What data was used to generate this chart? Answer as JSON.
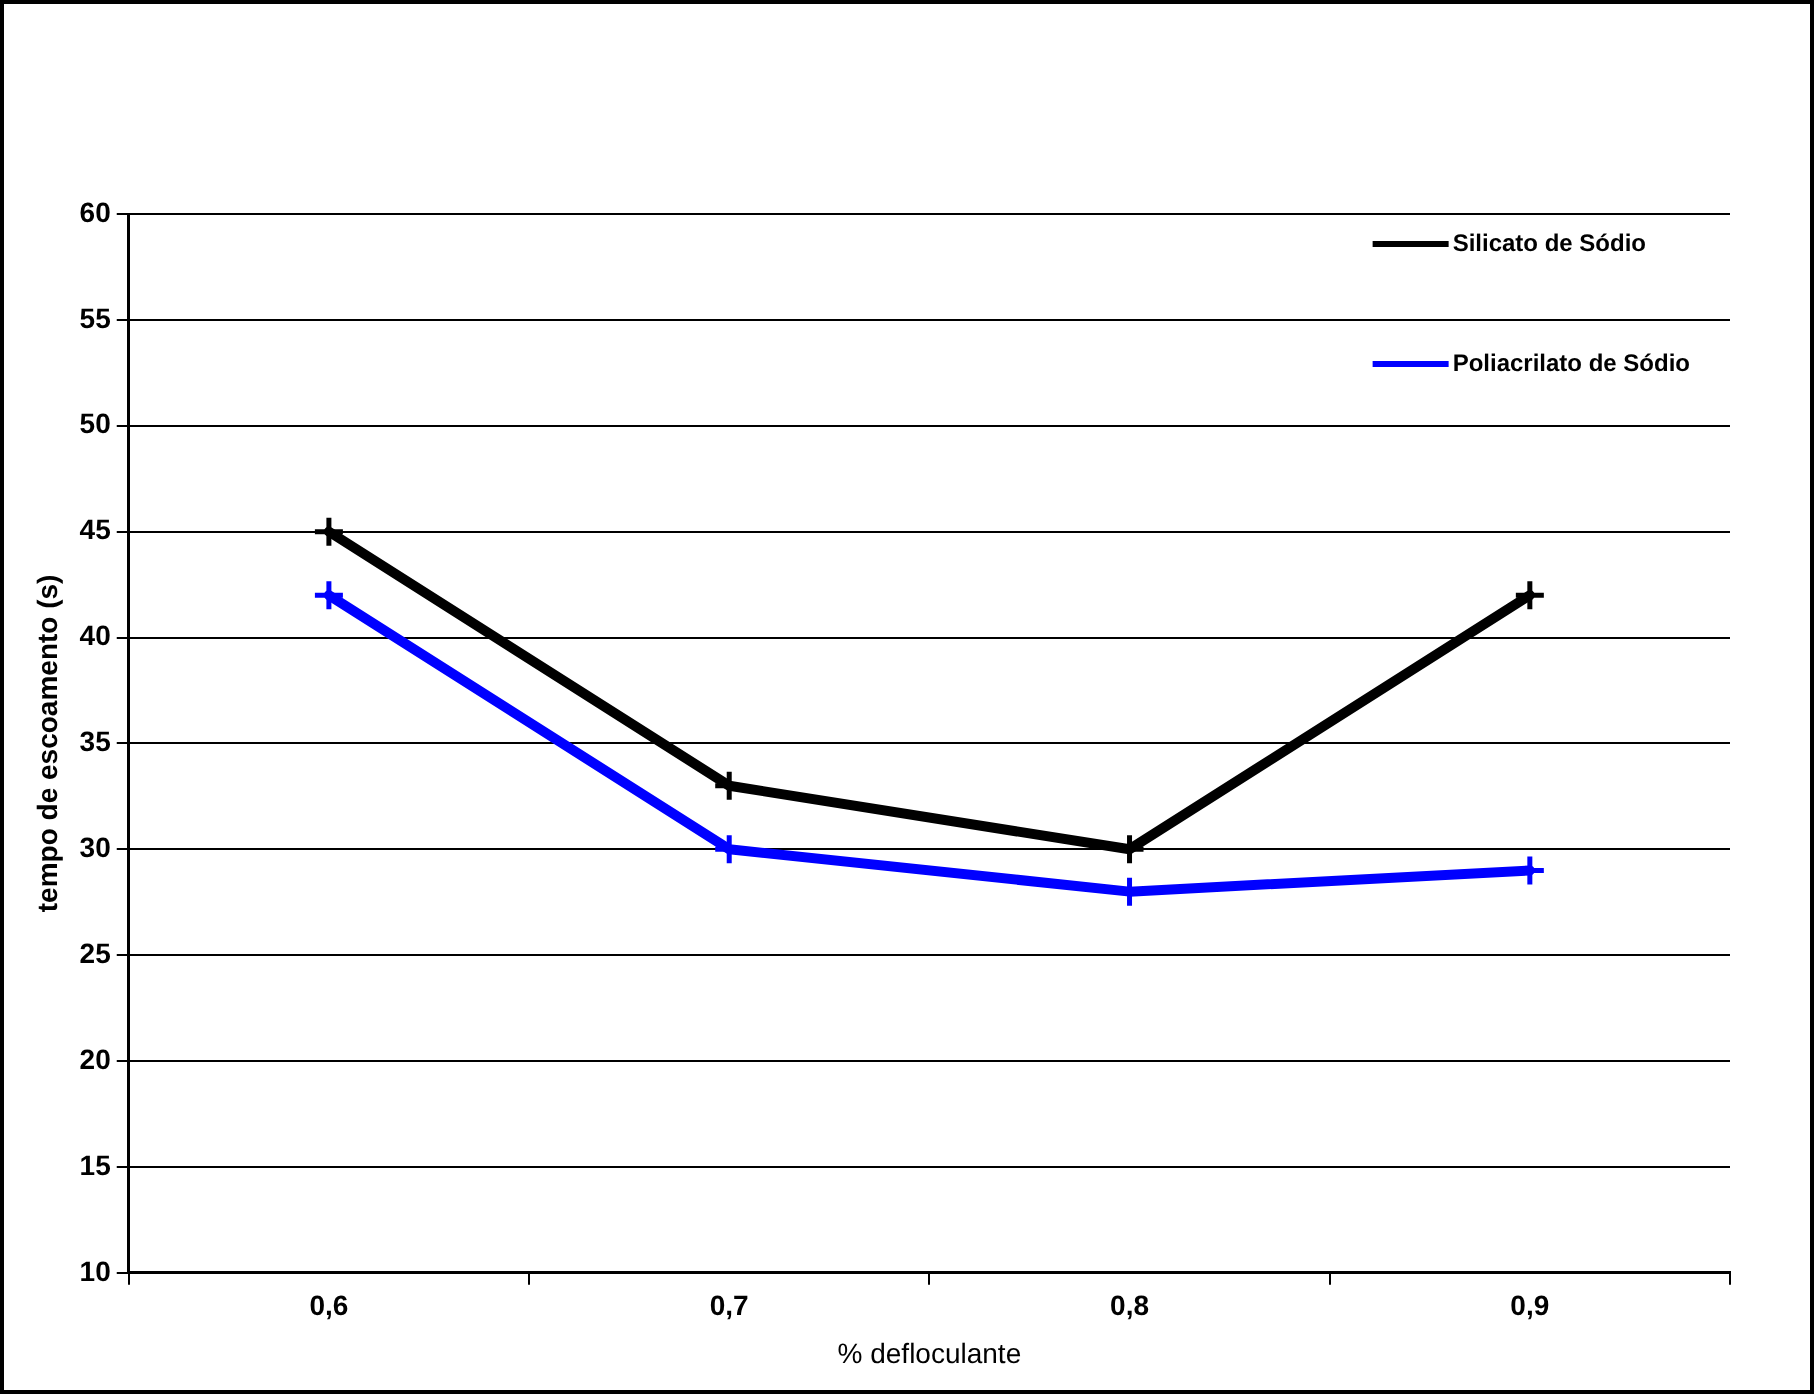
{
  "chart_data": {
    "type": "line",
    "xlabel": "% defloculante",
    "ylabel": "tempo de escoamento (s)",
    "categories": [
      "0,6",
      "0,7",
      "0,8",
      "0,9"
    ],
    "series": [
      {
        "name": "Silicato de Sódio",
        "color": "#000000",
        "values": [
          45,
          33,
          30,
          42
        ]
      },
      {
        "name": "Poliacrilato de Sódio",
        "color": "#0000ff",
        "values": [
          42,
          30,
          28,
          29
        ]
      }
    ],
    "ylim": [
      10,
      60
    ],
    "yticks": [
      10,
      15,
      20,
      25,
      30,
      35,
      40,
      45,
      50,
      55,
      60
    ],
    "grid": "y",
    "legend": "top right",
    "marker": "cross"
  }
}
